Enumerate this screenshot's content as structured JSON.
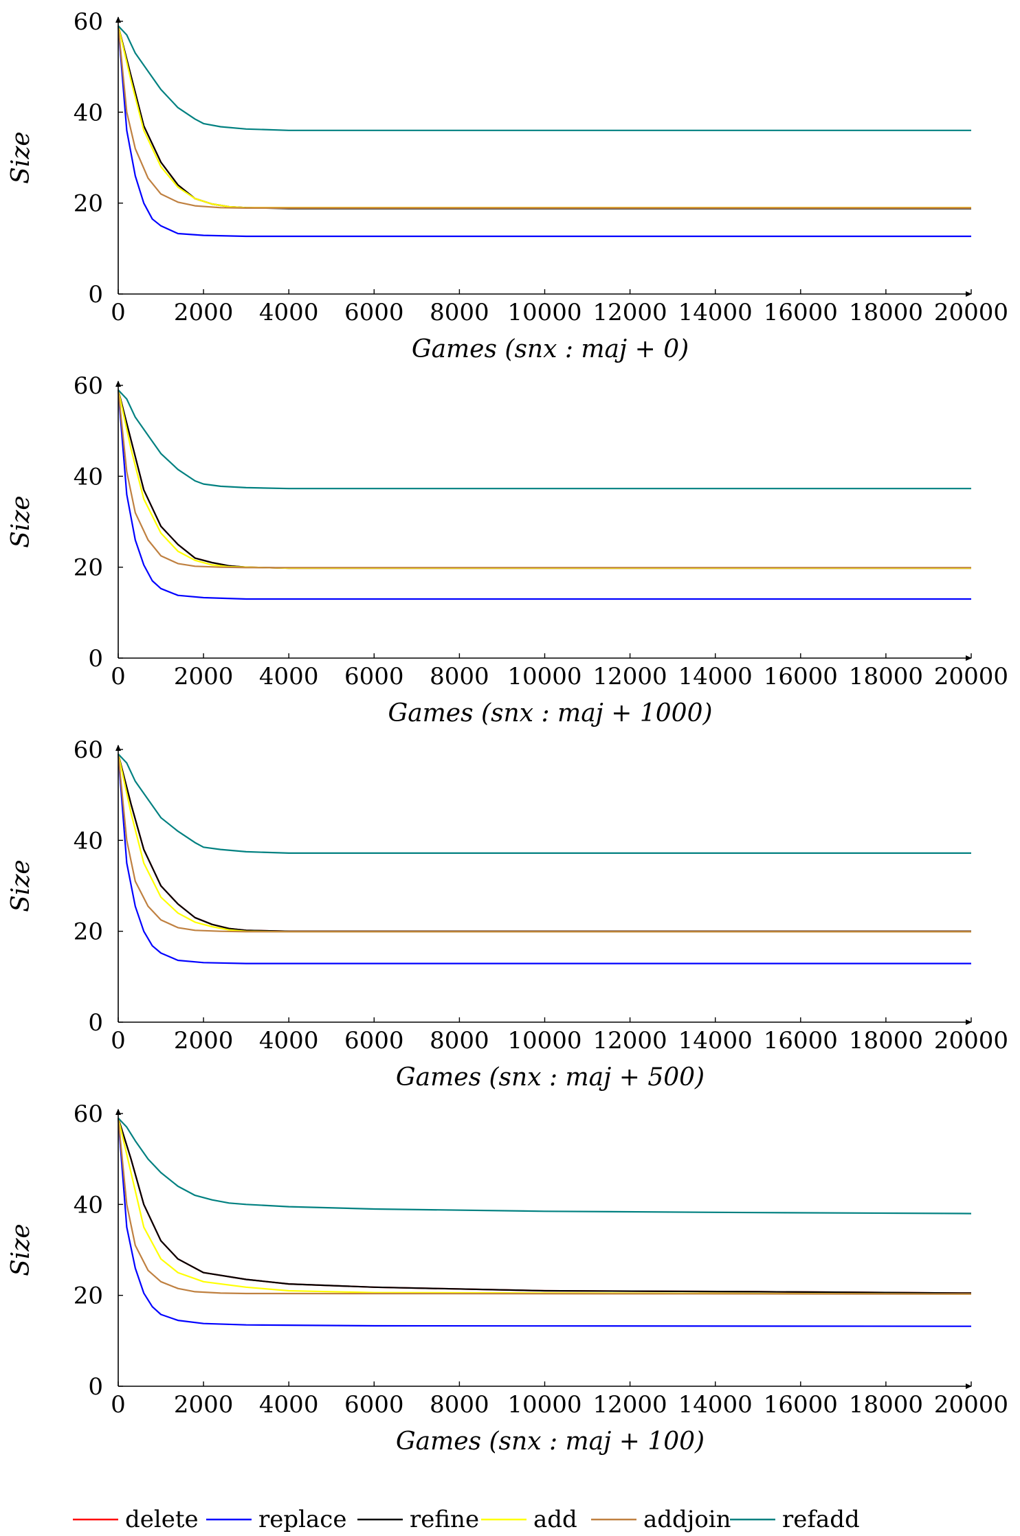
{
  "chart_data": [
    {
      "type": "line",
      "xlabel": "Games (snx : maj + 0)",
      "ylabel": "Size",
      "xlim": [
        0,
        20000
      ],
      "ylim": [
        0,
        60
      ],
      "xticks": [
        0,
        2000,
        4000,
        6000,
        8000,
        10000,
        12000,
        14000,
        16000,
        18000,
        20000
      ],
      "yticks": [
        0,
        20,
        40,
        60
      ],
      "grid": false,
      "series": [
        {
          "name": "delete",
          "x": [
            0,
            300,
            600,
            1000,
            1400,
            1800,
            2200,
            2600,
            3000,
            4000,
            20000
          ],
          "y": [
            59,
            48,
            37,
            29,
            24,
            21,
            19.8,
            19.2,
            19,
            19,
            19
          ]
        },
        {
          "name": "replace",
          "x": [
            0,
            200,
            400,
            600,
            800,
            1000,
            1400,
            2000,
            3000,
            20000
          ],
          "y": [
            59,
            36,
            26,
            20,
            16.5,
            15,
            13.3,
            12.9,
            12.7,
            12.7
          ]
        },
        {
          "name": "refine",
          "x": [
            0,
            300,
            600,
            1000,
            1400,
            1800,
            2200,
            2600,
            3000,
            4000,
            20000
          ],
          "y": [
            59,
            48,
            37,
            29,
            24,
            21,
            19.8,
            19.2,
            19,
            18.8,
            18.8
          ]
        },
        {
          "name": "add",
          "x": [
            0,
            300,
            600,
            1000,
            1400,
            1800,
            2200,
            2600,
            3000,
            4000,
            20000
          ],
          "y": [
            59,
            47,
            36,
            28,
            23.5,
            21,
            19.8,
            19.2,
            19,
            19,
            19
          ]
        },
        {
          "name": "addjoin",
          "x": [
            0,
            200,
            400,
            700,
            1000,
            1400,
            1800,
            2400,
            3000,
            20000
          ],
          "y": [
            59,
            40,
            32,
            25.5,
            22,
            20.2,
            19.4,
            19,
            18.9,
            18.9
          ]
        },
        {
          "name": "refadd",
          "x": [
            0,
            200,
            400,
            700,
            1000,
            1400,
            1800,
            2000,
            2400,
            3000,
            4000,
            20000
          ],
          "y": [
            59,
            57,
            53,
            49,
            45,
            41,
            38.5,
            37.5,
            36.8,
            36.3,
            36,
            36
          ]
        }
      ]
    },
    {
      "type": "line",
      "xlabel": "Games (snx : maj + 1000)",
      "ylabel": "Size",
      "xlim": [
        0,
        20000
      ],
      "ylim": [
        0,
        60
      ],
      "xticks": [
        0,
        2000,
        4000,
        6000,
        8000,
        10000,
        12000,
        14000,
        16000,
        18000,
        20000
      ],
      "yticks": [
        0,
        20,
        40,
        60
      ],
      "grid": false,
      "series": [
        {
          "name": "delete",
          "x": [
            0,
            300,
            600,
            1000,
            1400,
            1800,
            2200,
            2600,
            3000,
            4000,
            20000
          ],
          "y": [
            59,
            48,
            37,
            29,
            25,
            22,
            21,
            20.3,
            20,
            19.8,
            19.8
          ]
        },
        {
          "name": "replace",
          "x": [
            0,
            200,
            400,
            600,
            800,
            1000,
            1400,
            2000,
            3000,
            20000
          ],
          "y": [
            59,
            36,
            26,
            20.5,
            17,
            15.3,
            13.8,
            13.3,
            13,
            13
          ]
        },
        {
          "name": "refine",
          "x": [
            0,
            300,
            600,
            1000,
            1400,
            1800,
            2200,
            2600,
            3000,
            4000,
            20000
          ],
          "y": [
            59,
            48,
            37,
            29,
            25,
            22,
            21,
            20.3,
            20,
            19.8,
            19.8
          ]
        },
        {
          "name": "add",
          "x": [
            0,
            300,
            600,
            1000,
            1400,
            1800,
            2200,
            2600,
            3000,
            4000,
            20000
          ],
          "y": [
            59,
            46,
            35,
            27.5,
            23.5,
            21.5,
            20.5,
            20.1,
            20,
            19.8,
            19.8
          ]
        },
        {
          "name": "addjoin",
          "x": [
            0,
            200,
            400,
            700,
            1000,
            1400,
            1800,
            2400,
            3000,
            20000
          ],
          "y": [
            59,
            41,
            32,
            26,
            22.5,
            20.8,
            20.2,
            20,
            19.9,
            19.9
          ]
        },
        {
          "name": "refadd",
          "x": [
            0,
            200,
            400,
            700,
            1000,
            1400,
            1800,
            2000,
            2400,
            3000,
            4000,
            20000
          ],
          "y": [
            59,
            57,
            53,
            49,
            45,
            41.5,
            39,
            38.3,
            37.8,
            37.5,
            37.3,
            37.3
          ]
        }
      ]
    },
    {
      "type": "line",
      "xlabel": "Games (snx : maj + 500)",
      "ylabel": "Size",
      "xlim": [
        0,
        20000
      ],
      "ylim": [
        0,
        60
      ],
      "xticks": [
        0,
        2000,
        4000,
        6000,
        8000,
        10000,
        12000,
        14000,
        16000,
        18000,
        20000
      ],
      "yticks": [
        0,
        20,
        40,
        60
      ],
      "grid": false,
      "series": [
        {
          "name": "delete",
          "x": [
            0,
            300,
            600,
            1000,
            1400,
            1800,
            2200,
            2600,
            3000,
            4000,
            20000
          ],
          "y": [
            59,
            48,
            38,
            30,
            26,
            23,
            21.5,
            20.6,
            20.2,
            20,
            20
          ]
        },
        {
          "name": "replace",
          "x": [
            0,
            200,
            400,
            600,
            800,
            1000,
            1400,
            2000,
            3000,
            20000
          ],
          "y": [
            59,
            35,
            25.5,
            20,
            16.8,
            15.2,
            13.6,
            13.1,
            12.9,
            12.9
          ]
        },
        {
          "name": "refine",
          "x": [
            0,
            300,
            600,
            1000,
            1400,
            1800,
            2200,
            2600,
            3000,
            4000,
            20000
          ],
          "y": [
            59,
            48,
            38,
            30,
            26,
            23,
            21.5,
            20.6,
            20.2,
            20,
            20
          ]
        },
        {
          "name": "add",
          "x": [
            0,
            300,
            600,
            1000,
            1400,
            1800,
            2200,
            2600,
            3000,
            4000,
            20000
          ],
          "y": [
            59,
            46,
            35,
            27.5,
            24,
            22,
            21,
            20.3,
            20,
            19.9,
            19.9
          ]
        },
        {
          "name": "addjoin",
          "x": [
            0,
            200,
            400,
            700,
            1000,
            1400,
            1800,
            2400,
            3000,
            20000
          ],
          "y": [
            59,
            40,
            31,
            25.5,
            22.5,
            20.8,
            20.2,
            20,
            19.9,
            19.9
          ]
        },
        {
          "name": "refadd",
          "x": [
            0,
            200,
            400,
            700,
            1000,
            1400,
            1800,
            2000,
            2400,
            3000,
            4000,
            20000
          ],
          "y": [
            59,
            57,
            53,
            49,
            45,
            42,
            39.5,
            38.5,
            38,
            37.5,
            37.2,
            37.2
          ]
        }
      ]
    },
    {
      "type": "line",
      "xlabel": "Games (snx : maj + 100)",
      "ylabel": "Size",
      "xlim": [
        0,
        20000
      ],
      "ylim": [
        0,
        60
      ],
      "xticks": [
        0,
        2000,
        4000,
        6000,
        8000,
        10000,
        12000,
        14000,
        16000,
        18000,
        20000
      ],
      "yticks": [
        0,
        20,
        40,
        60
      ],
      "grid": false,
      "series": [
        {
          "name": "delete",
          "x": [
            0,
            300,
            600,
            1000,
            1400,
            2000,
            3000,
            4000,
            6000,
            10000,
            15000,
            20000
          ],
          "y": [
            59,
            50,
            40,
            32,
            28,
            25,
            23.5,
            22.5,
            21.8,
            21,
            20.8,
            20.5
          ]
        },
        {
          "name": "replace",
          "x": [
            0,
            200,
            400,
            600,
            800,
            1000,
            1400,
            2000,
            3000,
            6000,
            20000
          ],
          "y": [
            59,
            35,
            26,
            20.5,
            17.5,
            15.8,
            14.5,
            13.8,
            13.5,
            13.3,
            13.2
          ]
        },
        {
          "name": "refine",
          "x": [
            0,
            300,
            600,
            1000,
            1400,
            2000,
            3000,
            4000,
            6000,
            10000,
            15000,
            20000
          ],
          "y": [
            59,
            50,
            40,
            32,
            28,
            25,
            23.5,
            22.5,
            21.8,
            21,
            20.8,
            20.5
          ]
        },
        {
          "name": "add",
          "x": [
            0,
            300,
            600,
            1000,
            1400,
            2000,
            3000,
            4000,
            6000,
            20000
          ],
          "y": [
            59,
            47,
            35,
            28,
            25,
            23,
            21.8,
            21,
            20.6,
            20.3
          ]
        },
        {
          "name": "addjoin",
          "x": [
            0,
            200,
            400,
            700,
            1000,
            1400,
            1800,
            2400,
            3000,
            20000
          ],
          "y": [
            59,
            40,
            31,
            25.5,
            23,
            21.5,
            20.8,
            20.5,
            20.4,
            20.3
          ]
        },
        {
          "name": "refadd",
          "x": [
            0,
            200,
            400,
            700,
            1000,
            1400,
            1800,
            2200,
            2600,
            3000,
            4000,
            6000,
            10000,
            15000,
            20000
          ],
          "y": [
            59,
            57,
            54,
            50,
            47,
            44,
            42,
            41,
            40.3,
            40,
            39.5,
            39,
            38.5,
            38.2,
            38
          ]
        }
      ]
    }
  ],
  "legend": {
    "placement": "bottom",
    "items": [
      {
        "label": "delete",
        "color": "#ff0000"
      },
      {
        "label": "replace",
        "color": "#0000ff"
      },
      {
        "label": "refine",
        "color": "#000000"
      },
      {
        "label": "add",
        "color": "#ffff00"
      },
      {
        "label": "addjoin",
        "color": "#bf8040"
      },
      {
        "label": "refadd",
        "color": "#008080"
      }
    ]
  }
}
